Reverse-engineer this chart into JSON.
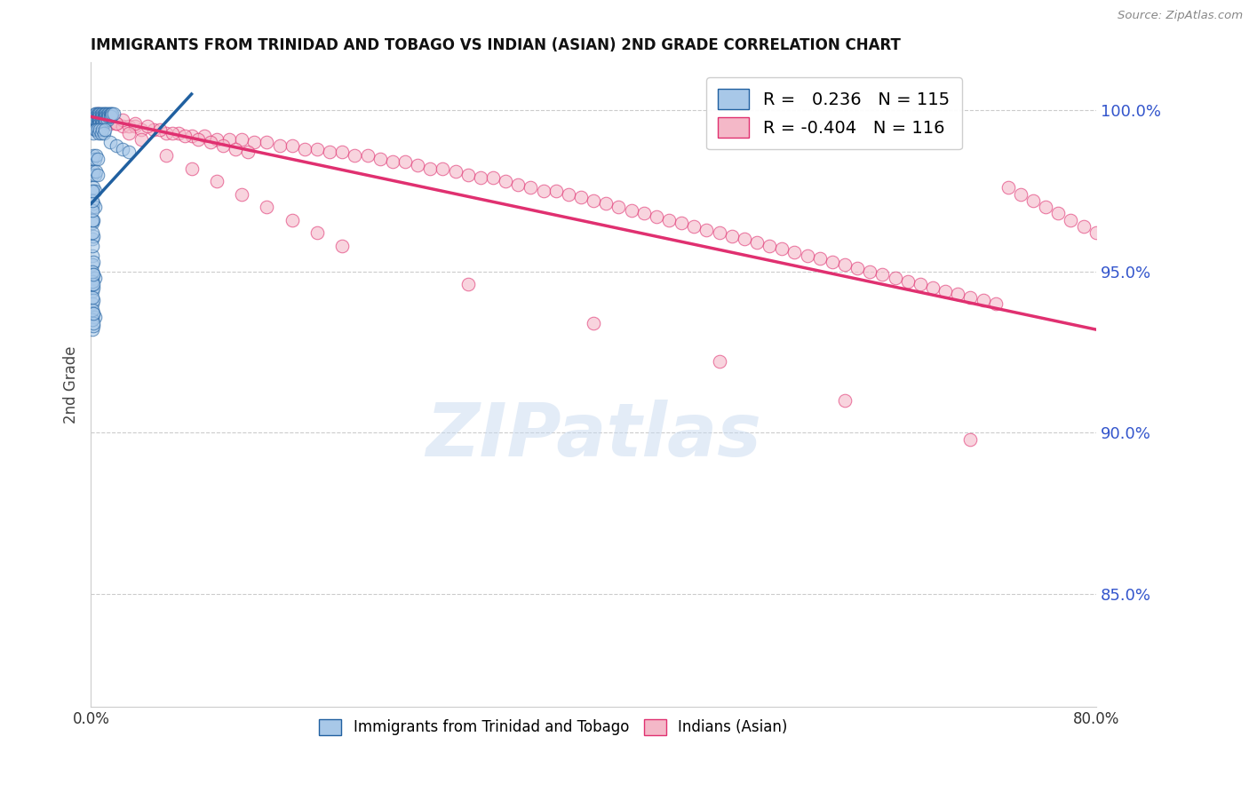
{
  "title": "IMMIGRANTS FROM TRINIDAD AND TOBAGO VS INDIAN (ASIAN) 2ND GRADE CORRELATION CHART",
  "source": "Source: ZipAtlas.com",
  "ylabel": "2nd Grade",
  "ytick_labels": [
    "100.0%",
    "95.0%",
    "90.0%",
    "85.0%"
  ],
  "ytick_values": [
    1.0,
    0.95,
    0.9,
    0.85
  ],
  "xlim": [
    0.0,
    0.8
  ],
  "ylim": [
    0.815,
    1.015
  ],
  "blue_color": "#a8c8e8",
  "pink_color": "#f4b8c8",
  "blue_line_color": "#2060a0",
  "pink_line_color": "#e03070",
  "legend_blue_label": "R =   0.236   N = 115",
  "legend_pink_label": "R = -0.404   N = 116",
  "watermark": "ZIPatlas",
  "legend_label_blue": "Immigrants from Trinidad and Tobago",
  "legend_label_pink": "Indians (Asian)",
  "blue_scatter_x": [
    0.001,
    0.002,
    0.002,
    0.003,
    0.003,
    0.003,
    0.004,
    0.004,
    0.004,
    0.005,
    0.005,
    0.005,
    0.005,
    0.006,
    0.006,
    0.006,
    0.006,
    0.007,
    0.007,
    0.007,
    0.007,
    0.008,
    0.008,
    0.008,
    0.008,
    0.009,
    0.009,
    0.009,
    0.009,
    0.01,
    0.01,
    0.01,
    0.01,
    0.011,
    0.011,
    0.011,
    0.012,
    0.012,
    0.012,
    0.013,
    0.013,
    0.013,
    0.014,
    0.014,
    0.015,
    0.015,
    0.016,
    0.016,
    0.017,
    0.018,
    0.002,
    0.003,
    0.004,
    0.005,
    0.006,
    0.007,
    0.008,
    0.009,
    0.01,
    0.011,
    0.001,
    0.002,
    0.003,
    0.004,
    0.005,
    0.001,
    0.002,
    0.003,
    0.004,
    0.005,
    0.001,
    0.002,
    0.003,
    0.001,
    0.002,
    0.003,
    0.001,
    0.002,
    0.001,
    0.002,
    0.001,
    0.015,
    0.02,
    0.025,
    0.03,
    0.001,
    0.002,
    0.001,
    0.002,
    0.003,
    0.001,
    0.002,
    0.001,
    0.002,
    0.001,
    0.002,
    0.003,
    0.001,
    0.002,
    0.001,
    0.002,
    0.001,
    0.002,
    0.001,
    0.001,
    0.001,
    0.002,
    0.001,
    0.002,
    0.001,
    0.001,
    0.001,
    0.001,
    0.001,
    0.001
  ],
  "blue_scatter_y": [
    0.998,
    0.997,
    0.996,
    0.999,
    0.998,
    0.997,
    0.999,
    0.998,
    0.997,
    0.999,
    0.998,
    0.997,
    0.996,
    0.999,
    0.998,
    0.997,
    0.996,
    0.999,
    0.998,
    0.997,
    0.996,
    0.999,
    0.998,
    0.997,
    0.996,
    0.999,
    0.998,
    0.997,
    0.996,
    0.999,
    0.998,
    0.997,
    0.996,
    0.999,
    0.998,
    0.997,
    0.999,
    0.998,
    0.997,
    0.999,
    0.998,
    0.997,
    0.999,
    0.998,
    0.999,
    0.998,
    0.999,
    0.998,
    0.999,
    0.999,
    0.993,
    0.994,
    0.994,
    0.994,
    0.993,
    0.994,
    0.993,
    0.994,
    0.993,
    0.994,
    0.985,
    0.986,
    0.985,
    0.986,
    0.985,
    0.98,
    0.981,
    0.98,
    0.981,
    0.98,
    0.975,
    0.976,
    0.975,
    0.97,
    0.971,
    0.97,
    0.965,
    0.966,
    0.96,
    0.961,
    0.955,
    0.99,
    0.989,
    0.988,
    0.987,
    0.952,
    0.953,
    0.948,
    0.949,
    0.948,
    0.944,
    0.945,
    0.94,
    0.941,
    0.936,
    0.937,
    0.936,
    0.932,
    0.933,
    0.935,
    0.934,
    0.938,
    0.937,
    0.942,
    0.946,
    0.947,
    0.946,
    0.95,
    0.949,
    0.958,
    0.962,
    0.966,
    0.969,
    0.972,
    0.975
  ],
  "pink_scatter_x": [
    0.003,
    0.006,
    0.009,
    0.012,
    0.015,
    0.02,
    0.025,
    0.03,
    0.035,
    0.04,
    0.05,
    0.06,
    0.07,
    0.08,
    0.09,
    0.1,
    0.11,
    0.12,
    0.13,
    0.14,
    0.15,
    0.16,
    0.17,
    0.18,
    0.19,
    0.2,
    0.21,
    0.22,
    0.23,
    0.24,
    0.25,
    0.26,
    0.27,
    0.28,
    0.29,
    0.3,
    0.31,
    0.32,
    0.33,
    0.34,
    0.35,
    0.36,
    0.37,
    0.38,
    0.39,
    0.4,
    0.41,
    0.42,
    0.43,
    0.44,
    0.45,
    0.46,
    0.47,
    0.48,
    0.49,
    0.5,
    0.51,
    0.52,
    0.53,
    0.54,
    0.55,
    0.56,
    0.57,
    0.58,
    0.59,
    0.6,
    0.61,
    0.62,
    0.63,
    0.64,
    0.65,
    0.66,
    0.67,
    0.68,
    0.69,
    0.7,
    0.71,
    0.72,
    0.73,
    0.74,
    0.75,
    0.76,
    0.77,
    0.78,
    0.79,
    0.8,
    0.015,
    0.025,
    0.035,
    0.045,
    0.055,
    0.065,
    0.075,
    0.085,
    0.095,
    0.105,
    0.115,
    0.125,
    0.005,
    0.01,
    0.02,
    0.03,
    0.04,
    0.06,
    0.08,
    0.1,
    0.12,
    0.14,
    0.16,
    0.18,
    0.2,
    0.3,
    0.4,
    0.5,
    0.6,
    0.7
  ],
  "pink_scatter_y": [
    0.998,
    0.997,
    0.997,
    0.997,
    0.996,
    0.996,
    0.995,
    0.995,
    0.995,
    0.994,
    0.994,
    0.993,
    0.993,
    0.992,
    0.992,
    0.991,
    0.991,
    0.991,
    0.99,
    0.99,
    0.989,
    0.989,
    0.988,
    0.988,
    0.987,
    0.987,
    0.986,
    0.986,
    0.985,
    0.984,
    0.984,
    0.983,
    0.982,
    0.982,
    0.981,
    0.98,
    0.979,
    0.979,
    0.978,
    0.977,
    0.976,
    0.975,
    0.975,
    0.974,
    0.973,
    0.972,
    0.971,
    0.97,
    0.969,
    0.968,
    0.967,
    0.966,
    0.965,
    0.964,
    0.963,
    0.962,
    0.961,
    0.96,
    0.959,
    0.958,
    0.957,
    0.956,
    0.955,
    0.954,
    0.953,
    0.952,
    0.951,
    0.95,
    0.949,
    0.948,
    0.947,
    0.946,
    0.945,
    0.944,
    0.943,
    0.942,
    0.941,
    0.94,
    0.976,
    0.974,
    0.972,
    0.97,
    0.968,
    0.966,
    0.964,
    0.962,
    0.998,
    0.997,
    0.996,
    0.995,
    0.994,
    0.993,
    0.992,
    0.991,
    0.99,
    0.989,
    0.988,
    0.987,
    0.999,
    0.998,
    0.996,
    0.993,
    0.991,
    0.986,
    0.982,
    0.978,
    0.974,
    0.97,
    0.966,
    0.962,
    0.958,
    0.946,
    0.934,
    0.922,
    0.91,
    0.898
  ],
  "blue_trendline_x": [
    0.0,
    0.08
  ],
  "blue_trendline_y": [
    0.971,
    1.005
  ],
  "pink_trendline_x": [
    0.0,
    0.8
  ],
  "pink_trendline_y": [
    0.998,
    0.932
  ]
}
